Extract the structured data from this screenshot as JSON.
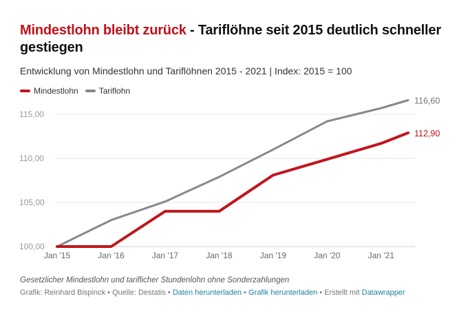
{
  "header": {
    "title_highlight": "Mindestlohn bleibt zurück",
    "title_rest": " - Tariflöhne seit 2015 deutlich schneller gestiegen",
    "subtitle": "Entwicklung von Mindestlohn und Tariflöhnen 2015 - 2021 | Index: 2015 = 100"
  },
  "footer": {
    "notes": "Gesetzlicher Mindestlohn und tariflicher Stundenlohn ohne Sonderzahlungen",
    "author": "Grafik: Reinhard Bispinck",
    "sep1": " • ",
    "source": "Quelle: Destatis",
    "sep2": " • ",
    "data_link": "Daten herunterladen",
    "sep3": " • ",
    "image_link": "Grafik herunterladen",
    "sep4": " • ",
    "made_with": "Erstellt mit ",
    "datawrapper_link": "Datawrapper"
  },
  "colors": {
    "mindestlohn": "#c0161d",
    "tariflohn": "#888888",
    "link": "#1d81a2",
    "title_highlight": "#c0101a"
  },
  "chart_data": {
    "type": "line",
    "title": "Mindestlohn bleibt zurück - Tariflöhne seit 2015 deutlich schneller gestiegen",
    "subtitle": "Entwicklung von Mindestlohn und Tariflöhnen 2015 - 2021 | Index: 2015 = 100",
    "xlabel": "",
    "ylabel": "",
    "x": [
      2015.0,
      2016.0,
      2017.0,
      2018.0,
      2019.0,
      2020.0,
      2021.0,
      2021.5
    ],
    "xticks": [
      2015,
      2016,
      2017,
      2018,
      2019,
      2020,
      2021
    ],
    "xtick_labels": [
      "Jan '15",
      "Jan '16",
      "Jan '17",
      "Jan '18",
      "Jan '19",
      "Jan '20",
      "Jan '21"
    ],
    "yticks": [
      100,
      105,
      110,
      115
    ],
    "ytick_labels": [
      "100,00",
      "105,00",
      "110,00",
      "115,00"
    ],
    "ylim": [
      100,
      116.6
    ],
    "xlim": [
      2015.0,
      2021.5
    ],
    "grid": true,
    "legend": "top-left",
    "series": [
      {
        "name": "Mindestlohn",
        "color": "#c0161d",
        "values": [
          100.0,
          100.0,
          104.0,
          104.0,
          108.1,
          109.9,
          111.7,
          112.9
        ],
        "end_label": "112,90",
        "step": true
      },
      {
        "name": "Tariflohn",
        "color": "#888888",
        "values": [
          100.0,
          103.0,
          105.1,
          107.9,
          111.0,
          114.2,
          115.7,
          116.6
        ],
        "end_label": "116,60"
      }
    ]
  }
}
